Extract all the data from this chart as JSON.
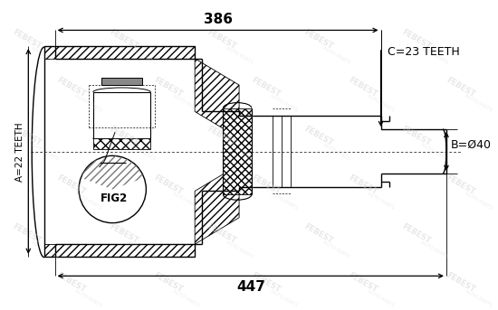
{
  "bg_color": "#ffffff",
  "watermark_color": "#cccccc",
  "line_color": "#000000",
  "label_A": "A=22 TEETH",
  "label_B": "B=Ø40",
  "label_C": "C=23 TEETH",
  "label_FIG2": "FIG2",
  "dim_386": "386",
  "dim_447": "447"
}
